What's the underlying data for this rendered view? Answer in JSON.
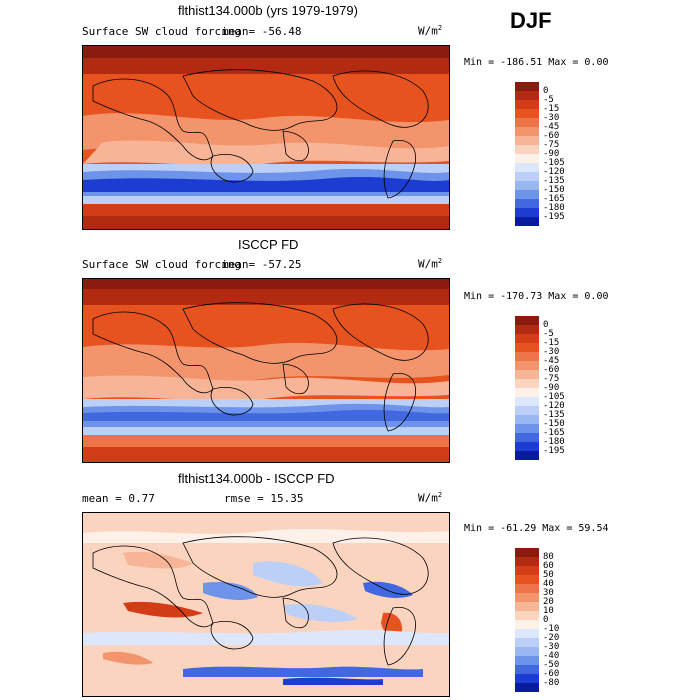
{
  "season": "DJF",
  "panels": [
    {
      "title": "flthist134.000b (yrs 1979-1979)",
      "left_label": "Surface SW cloud forcing",
      "mean_label": "mean= ",
      "mean_value": "-56.48",
      "units_main": "W/m",
      "units_exp": "2",
      "minmax": "Min = -186.51 Max =    0.00",
      "colorbar": {
        "labels": [
          "0",
          "-5",
          "-15",
          "-30",
          "-45",
          "-60",
          "-75",
          "-90",
          "-105",
          "-120",
          "-135",
          "-150",
          "-165",
          "-180",
          "-195"
        ],
        "colors": [
          "#8b1a0f",
          "#b22a12",
          "#d23c16",
          "#e6531f",
          "#ee7447",
          "#f4946d",
          "#f8b497",
          "#fbd4c0",
          "#fdf1ea",
          "#dde7fb",
          "#bcd0f7",
          "#9ab7f2",
          "#6d93ea",
          "#4168e0",
          "#1d3dd2",
          "#091b9e"
        ]
      }
    },
    {
      "title": "ISCCP FD",
      "left_label": "Surface SW cloud forcing",
      "mean_label": "mean= ",
      "mean_value": "-57.25",
      "units_main": "W/m",
      "units_exp": "2",
      "minmax": "Min = -170.73 Max =    0.00",
      "colorbar": {
        "labels": [
          "0",
          "-5",
          "-15",
          "-30",
          "-45",
          "-60",
          "-75",
          "-90",
          "-105",
          "-120",
          "-135",
          "-150",
          "-165",
          "-180",
          "-195"
        ],
        "colors": [
          "#8b1a0f",
          "#b22a12",
          "#d23c16",
          "#e6531f",
          "#ee7447",
          "#f4946d",
          "#f8b497",
          "#fbd4c0",
          "#fdf1ea",
          "#dde7fb",
          "#bcd0f7",
          "#9ab7f2",
          "#6d93ea",
          "#4168e0",
          "#1d3dd2",
          "#091b9e"
        ]
      }
    },
    {
      "title": "flthist134.000b - ISCCP FD",
      "mean_text": "mean =    0.77",
      "rmse_text": "rmse =   15.35",
      "units_main": "W/m",
      "units_exp": "2",
      "minmax": "Min = -61.29 Max =  59.54",
      "colorbar": {
        "labels": [
          "80",
          "60",
          "50",
          "40",
          "30",
          "20",
          "10",
          "0",
          "-10",
          "-20",
          "-30",
          "-40",
          "-50",
          "-60",
          "-80"
        ],
        "colors": [
          "#8b1a0f",
          "#b22a12",
          "#d23c16",
          "#e6531f",
          "#ee7447",
          "#f4946d",
          "#f8b497",
          "#fbd4c0",
          "#fdf1ea",
          "#dde7fb",
          "#bcd0f7",
          "#9ab7f2",
          "#6d93ea",
          "#4168e0",
          "#1d3dd2",
          "#091b9e"
        ]
      }
    }
  ]
}
